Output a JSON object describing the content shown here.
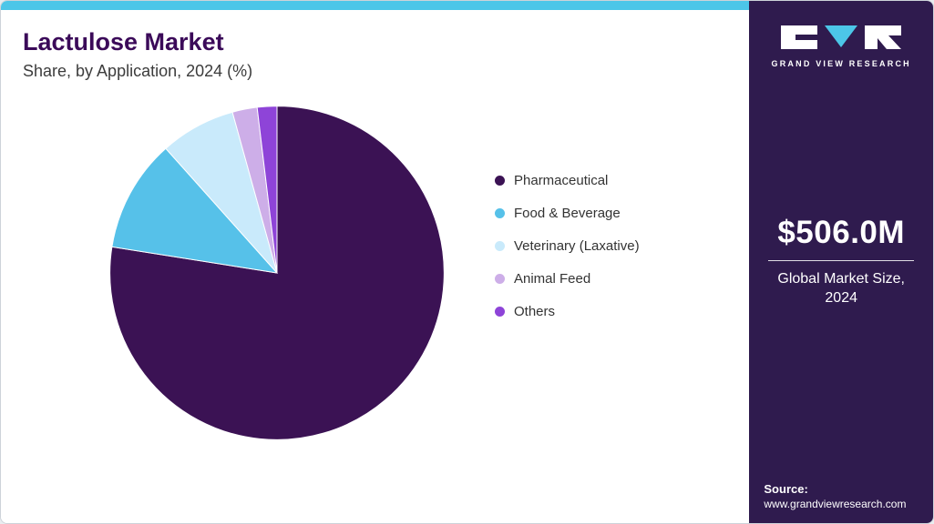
{
  "header": {
    "title": "Lactulose Market",
    "subtitle": "Share, by Application, 2024 (%)"
  },
  "chart_data": {
    "type": "pie",
    "title": "Lactulose Market Share, by Application, 2024 (%)",
    "categories": [
      "Pharmaceutical",
      "Food & Beverage",
      "Veterinary (Laxative)",
      "Animal Feed",
      "Others"
    ],
    "values": [
      77.5,
      10.9,
      7.3,
      2.4,
      1.9
    ],
    "colors": [
      "#3b1254",
      "#56c1e9",
      "#c9eafb",
      "#cdaee8",
      "#8e44d8"
    ],
    "legend_position": "right",
    "start_angle_deg": 0,
    "direction": "clockwise"
  },
  "sidebar": {
    "brand": "GRAND VIEW RESEARCH",
    "market_size": "$506.0M",
    "market_size_label": "Global Market Size, 2024",
    "source_label": "Source:",
    "source_url": "www.grandviewresearch.com"
  },
  "colors": {
    "topbar": "#4cc6e8",
    "sidebar_bg": "#2f1b4e",
    "title": "#3b0a59"
  }
}
